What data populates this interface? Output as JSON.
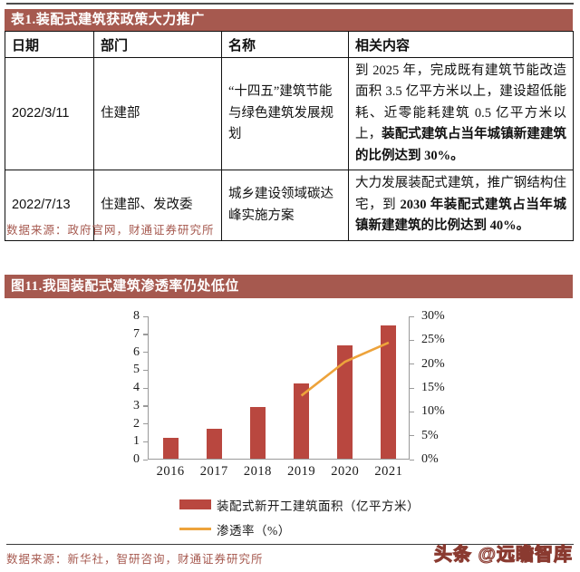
{
  "table": {
    "title": "表1.装配式建筑获政策大力推广",
    "headers": [
      "日期",
      "部门",
      "名称",
      "相关内容"
    ],
    "rows": [
      {
        "date": "2022/3/11",
        "dept": "住建部",
        "name": "“十四五”建筑节能与绿色建筑发展规划",
        "content_normal": "到 2025 年，完成既有建筑节能改造面积 3.5 亿平方米以上，建设超低能耗、近零能耗建筑 0.5 亿平方米以上，",
        "content_bold": "装配式建筑占当年城镇新建建筑的比例达到 30%。"
      },
      {
        "date": "2022/7/13",
        "dept": "住建部、发改委",
        "name": "城乡建设领域碳达峰实施方案",
        "content_normal": "大力发展装配式建筑，推广钢结构住宅，到 ",
        "content_bold": "2030 年装配式建筑占当年城镇新建建筑的比例达到 40%。"
      }
    ],
    "source": "数据来源：政府官网，财通证券研究所"
  },
  "figure": {
    "title": "图11.我国装配式建筑渗透率仍处低位",
    "source": "数据来源：新华社，智研咨询，财通证券研究所"
  },
  "watermark": "头条 @远瞻智库",
  "colors": {
    "title_bar": "#a6594f",
    "bar_series": "#b9473f",
    "line_series": "#eda33b",
    "source_text": "#a6594f",
    "axis": "#9a9a9a"
  },
  "chart_data": {
    "type": "bar",
    "title": "我国装配式建筑渗透率仍处低位",
    "categories": [
      "2016",
      "2017",
      "2018",
      "2019",
      "2020",
      "2021"
    ],
    "series": [
      {
        "name": "装配式新开工建筑面积（亿平方米）",
        "type": "bar",
        "axis": "left",
        "values": [
          1.15,
          1.65,
          2.9,
          4.2,
          6.35,
          7.45
        ],
        "color": "#b9473f"
      },
      {
        "name": "渗透率（%）",
        "type": "line",
        "axis": "right",
        "values": [
          null,
          null,
          null,
          13.4,
          20.5,
          24.5
        ],
        "color": "#eda33b"
      }
    ],
    "left_axis": {
      "min": 0,
      "max": 8,
      "ticks": [
        "8",
        "7",
        "6",
        "5",
        "4",
        "3",
        "2",
        "1",
        "0"
      ]
    },
    "right_axis": {
      "min": 0,
      "max": 30,
      "ticks": [
        "30%",
        "25%",
        "20%",
        "15%",
        "10%",
        "5%",
        "0%"
      ]
    },
    "legend_position": "bottom",
    "grid": false
  }
}
